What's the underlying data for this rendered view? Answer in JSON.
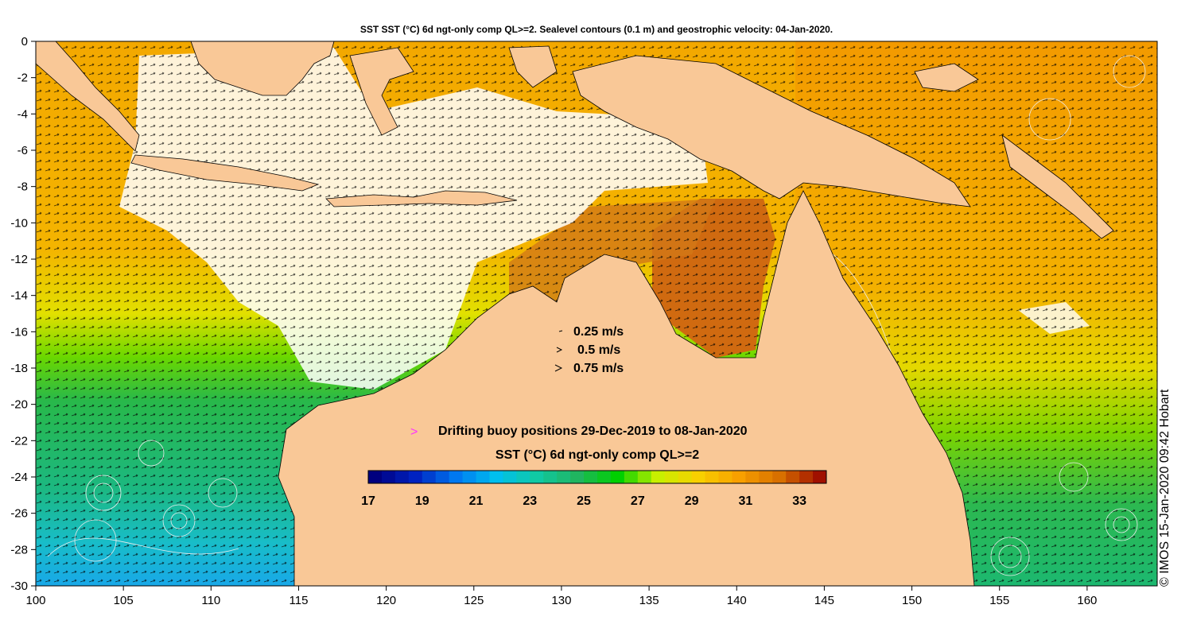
{
  "title": "SST SST (°C) 6d ngt-only comp QL>=2. Sealevel contours (0.1 m) and geostrophic velocity: 04-Jan-2020.",
  "credit": "© IMOS 15-Jan-2020 09:42 Hobart",
  "colors": {
    "land": "#f9c897",
    "white_cloud": "#ffffff",
    "arrow": "#000000",
    "contour": "#e8e8e8",
    "buoy": "#ff33ff"
  },
  "axes": {
    "x_ticks": [
      100,
      105,
      110,
      115,
      120,
      125,
      130,
      135,
      140,
      145,
      150,
      155,
      160
    ],
    "y_ticks": [
      0,
      -2,
      -4,
      -6,
      -8,
      -10,
      -12,
      -14,
      -16,
      -18,
      -20,
      -22,
      -24,
      -26,
      -28,
      -30
    ],
    "xlim": [
      100,
      164
    ],
    "ylim": [
      -30,
      0
    ]
  },
  "velocity_legend": {
    "items": [
      {
        "label": "0.25 m/s"
      },
      {
        "label": "0.5 m/s"
      },
      {
        "label": "0.75 m/s"
      }
    ]
  },
  "buoy_legend": {
    "symbol": ">",
    "label": "Drifting buoy positions 29-Dec-2019 to 08-Jan-2020"
  },
  "colorbar": {
    "title": "SST (°C) 6d ngt-only comp QL>=2",
    "range": [
      17,
      34
    ],
    "tick_labels": [
      "17",
      "19",
      "21",
      "23",
      "25",
      "27",
      "29",
      "31",
      "33"
    ],
    "stops": [
      "#00007f",
      "#0022c0",
      "#0078f0",
      "#00bfef",
      "#10c9a4",
      "#20b560",
      "#00d000",
      "#c8ef00",
      "#f8d000",
      "#f8a000",
      "#d87000",
      "#a01000"
    ]
  }
}
